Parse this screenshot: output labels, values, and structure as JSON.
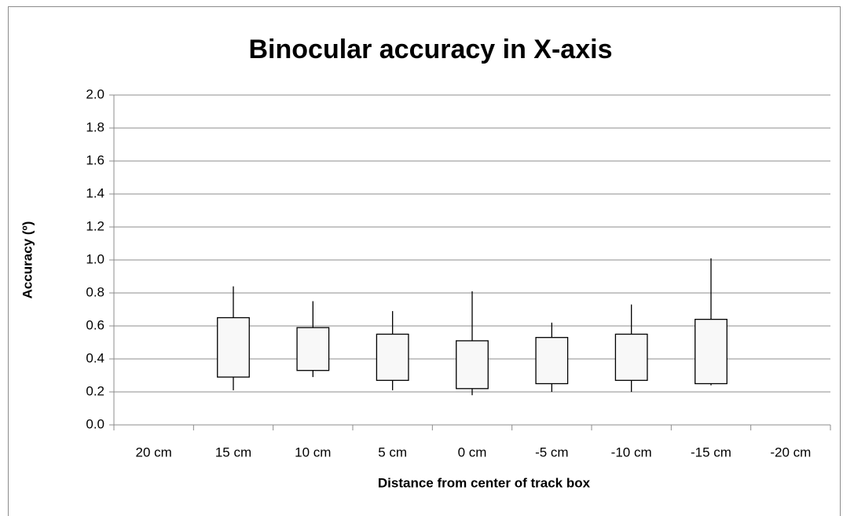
{
  "chart_data": {
    "type": "box",
    "title": "Binocular accuracy in X-axis",
    "x_label": "Distance from center of track box",
    "y_label": "Accuracy (º)",
    "categories": [
      "20 cm",
      "15 cm",
      "10 cm",
      "5 cm",
      "0 cm",
      "-5 cm",
      "-10 cm",
      "-15 cm",
      "-20 cm"
    ],
    "high": [
      0,
      0.84,
      0.75,
      0.69,
      0.81,
      0.62,
      0.73,
      1.01,
      0
    ],
    "box_top": [
      0,
      0.65,
      0.59,
      0.55,
      0.51,
      0.53,
      0.55,
      0.64,
      0
    ],
    "box_bottom": [
      0,
      0.29,
      0.33,
      0.27,
      0.22,
      0.25,
      0.27,
      0.25,
      0
    ],
    "low": [
      0,
      0.21,
      0.29,
      0.21,
      0.18,
      0.2,
      0.2,
      0.24,
      0
    ],
    "color": "#f8f8f8",
    "ylim": [
      0,
      2
    ],
    "yticks": [
      {
        "value": 0,
        "label": "0.0"
      },
      {
        "value": 0.2,
        "label": "0.2"
      },
      {
        "value": 0.4,
        "label": "0.4"
      },
      {
        "value": 0.6,
        "label": "0.6"
      },
      {
        "value": 0.8,
        "label": "0.8"
      },
      {
        "value": 1,
        "label": "1.0"
      },
      {
        "value": 1.2,
        "label": "1.2"
      },
      {
        "value": 1.4,
        "label": "1.4"
      },
      {
        "value": 1.6,
        "label": "1.6"
      },
      {
        "value": 1.8,
        "label": "1.8"
      },
      {
        "value": 2,
        "label": "2.0"
      }
    ],
    "grid": true
  }
}
